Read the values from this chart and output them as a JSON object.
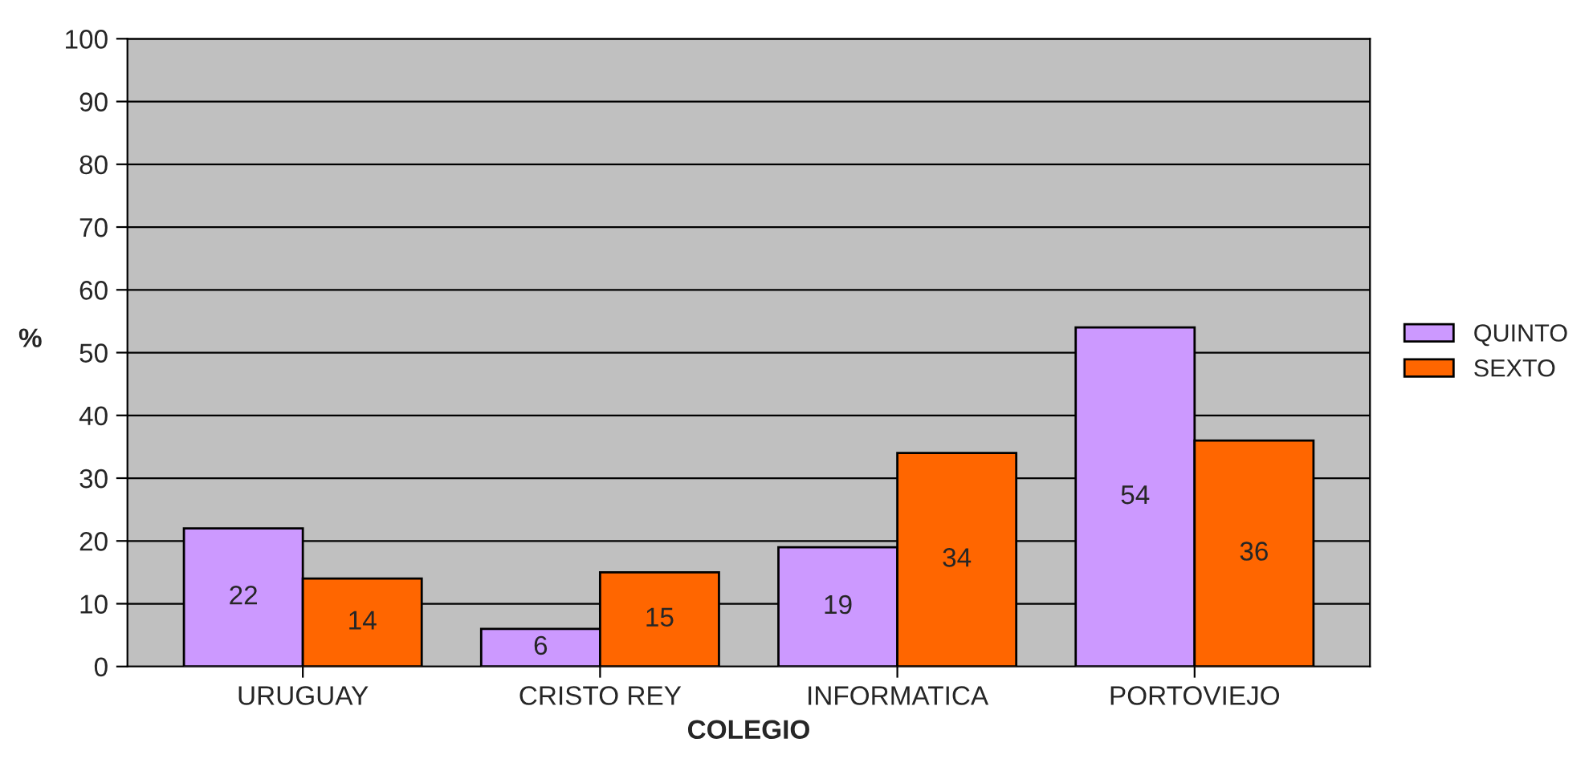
{
  "chart_data": {
    "type": "bar",
    "xlabel": "COLEGIO",
    "ylabel": "%",
    "categories": [
      "URUGUAY",
      "CRISTO REY",
      "INFORMATICA",
      "PORTOVIEJO"
    ],
    "series": [
      {
        "name": "QUINTO",
        "color": "#cc99ff",
        "values": [
          22,
          6,
          19,
          54
        ]
      },
      {
        "name": "SEXTO",
        "color": "#ff6600",
        "values": [
          14,
          15,
          34,
          36
        ]
      }
    ],
    "ylim": [
      0,
      100
    ],
    "yticks": [
      0,
      10,
      20,
      30,
      40,
      50,
      60,
      70,
      80,
      90,
      100
    ],
    "grid": "y",
    "legend": "right",
    "data_labels": true
  }
}
